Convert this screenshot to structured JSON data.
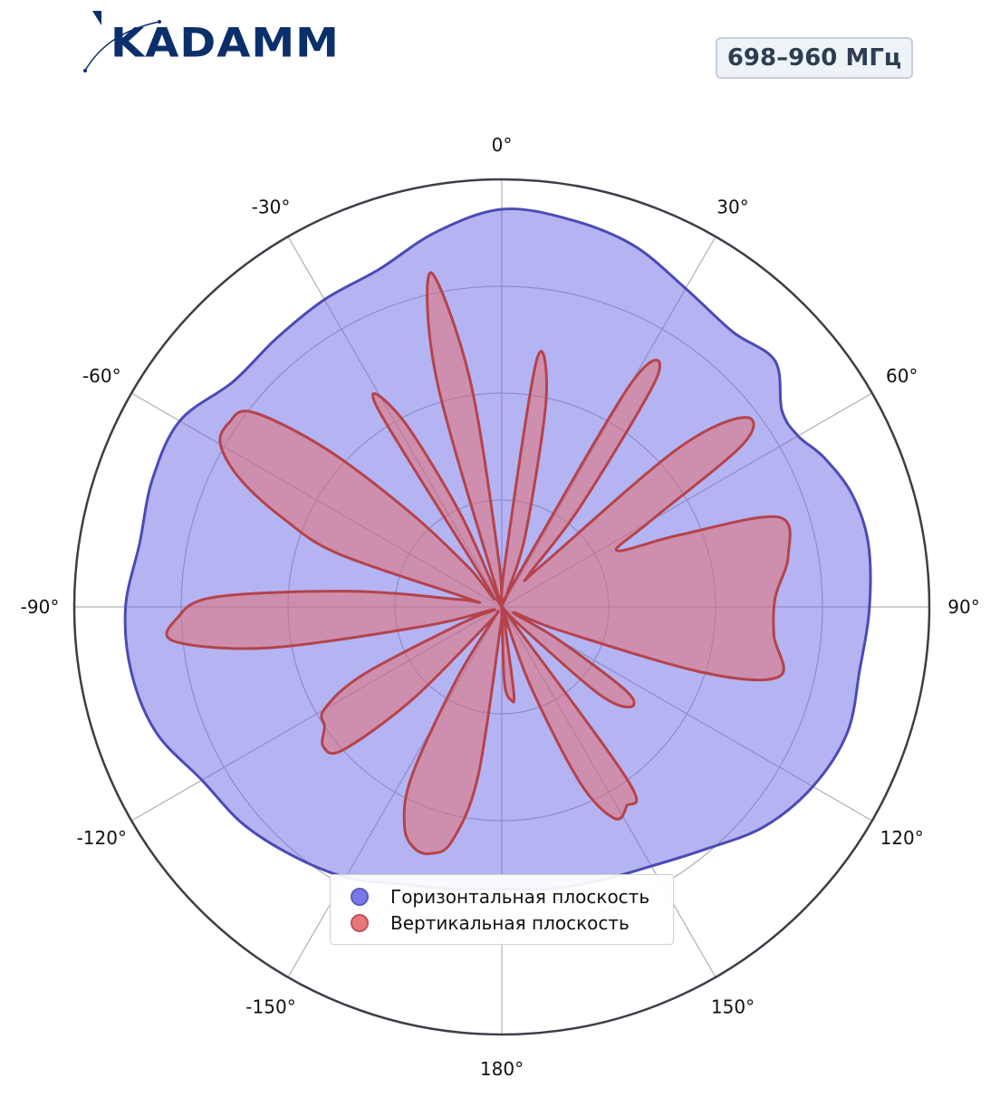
{
  "brand": {
    "logo_text": "KADAMM"
  },
  "badge": {
    "frequency": "698–960 МГц"
  },
  "chart_data": {
    "type": "polar-area",
    "angle_ticks": [
      "0°",
      "30°",
      "60°",
      "90°",
      "120°",
      "150°",
      "180°",
      "-150°",
      "-120°",
      "-90°",
      "-60°",
      "-30°"
    ],
    "angle_tick_values": [
      0,
      30,
      60,
      90,
      120,
      150,
      180,
      -150,
      -120,
      -90,
      -60,
      -30
    ],
    "r_max": 1.0,
    "r_grid": [
      0.25,
      0.5,
      0.75
    ],
    "grid": true,
    "legend_position": "bottom-center",
    "series": [
      {
        "name": "Горизонтальная плоскость",
        "color": "#6a6ae8",
        "line_color": "#4b4bb5",
        "angles": [
          0,
          10,
          20,
          30,
          40,
          48,
          55,
          60,
          65,
          72,
          80,
          90,
          100,
          110,
          120,
          130,
          140,
          150,
          160,
          170,
          180,
          -170,
          -160,
          -150,
          -140,
          -130,
          -120,
          -110,
          -100,
          -90,
          -80,
          -70,
          -60,
          -50,
          -40,
          -30,
          -20,
          -10
        ],
        "r": [
          0.93,
          0.92,
          0.9,
          0.86,
          0.84,
          0.86,
          0.8,
          0.8,
          0.83,
          0.86,
          0.87,
          0.86,
          0.85,
          0.86,
          0.84,
          0.8,
          0.74,
          0.7,
          0.68,
          0.67,
          0.66,
          0.67,
          0.69,
          0.73,
          0.76,
          0.79,
          0.81,
          0.86,
          0.88,
          0.88,
          0.86,
          0.87,
          0.87,
          0.82,
          0.82,
          0.83,
          0.84,
          0.89
        ]
      },
      {
        "name": "Вертикальная плоскость",
        "color": "#e86a6a",
        "line_color": "#b5434b",
        "angles": [
          -20,
          -16,
          -12,
          -8,
          -4,
          0,
          4,
          8,
          12,
          18,
          22,
          26,
          30,
          34,
          38,
          40,
          44,
          48,
          52,
          56,
          60,
          64,
          68,
          72,
          80,
          88,
          96,
          104,
          108,
          112,
          116,
          120,
          124,
          128,
          132,
          136,
          140,
          144,
          148,
          152,
          156,
          160,
          164,
          168,
          172,
          174,
          178,
          180,
          184,
          188,
          192,
          196,
          200,
          204,
          208,
          212,
          216,
          220,
          224,
          228,
          232,
          236,
          240,
          244,
          248,
          252,
          256,
          260,
          264,
          268,
          272,
          276,
          280,
          284,
          288,
          292,
          296,
          300,
          304,
          308,
          312,
          316,
          320,
          324,
          328,
          332,
          336,
          340
        ],
        "r": [
          0.0,
          0.55,
          0.8,
          0.54,
          0.12,
          0.0,
          0.1,
          0.58,
          0.5,
          0.18,
          0.03,
          0.06,
          0.6,
          0.65,
          0.3,
          0.1,
          0.14,
          0.55,
          0.72,
          0.68,
          0.4,
          0.3,
          0.45,
          0.68,
          0.68,
          0.64,
          0.64,
          0.67,
          0.5,
          0.15,
          0.03,
          0.15,
          0.35,
          0.38,
          0.3,
          0.05,
          0.01,
          0.5,
          0.55,
          0.56,
          0.45,
          0.2,
          0.01,
          0.02,
          0.2,
          0.22,
          0.18,
          0.02,
          0.05,
          0.4,
          0.56,
          0.6,
          0.6,
          0.56,
          0.45,
          0.2,
          0.03,
          0.05,
          0.3,
          0.5,
          0.53,
          0.5,
          0.48,
          0.36,
          0.1,
          0.02,
          0.18,
          0.55,
          0.77,
          0.76,
          0.67,
          0.35,
          0.1,
          0.08,
          0.4,
          0.55,
          0.68,
          0.76,
          0.77,
          0.74,
          0.55,
          0.3,
          0.12,
          0.05,
          0.55,
          0.5,
          0.24,
          0.0
        ]
      }
    ]
  }
}
